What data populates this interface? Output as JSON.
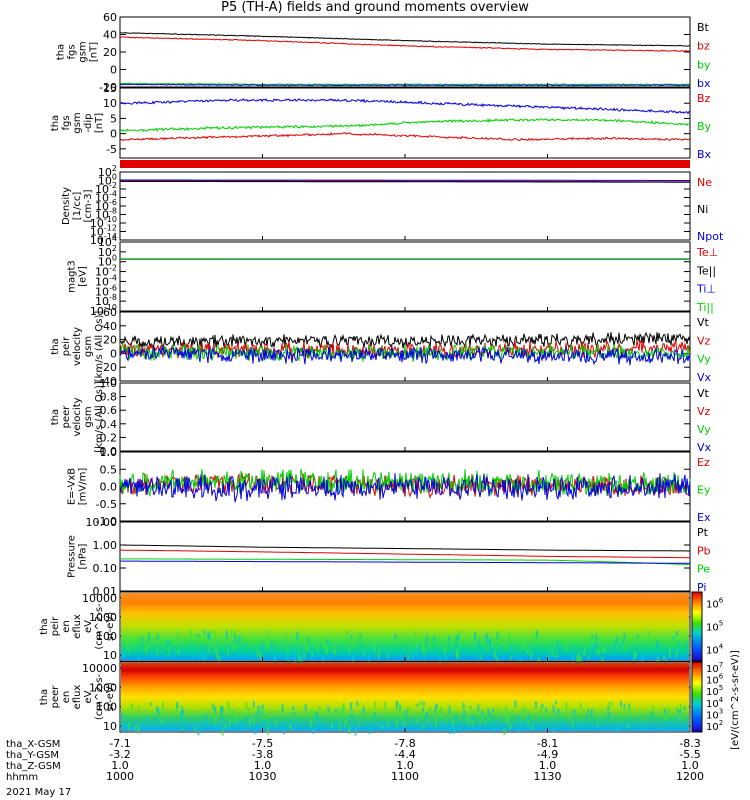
{
  "title": "P5 (TH-A) fields and ground moments overview",
  "colors": {
    "black": "#000000",
    "red": "#e00000",
    "green": "#00d000",
    "blue": "#0000e0"
  },
  "chart_data": [
    {
      "type": "line",
      "ylabel": [
        "tha",
        "fgs",
        "gsm",
        "[nT]"
      ],
      "ylim": [
        -20,
        60
      ],
      "yticks": [
        "-20",
        "0",
        "20",
        "40",
        "60"
      ],
      "yscale": "linear",
      "series": [
        {
          "name": "Bt",
          "color": "#000000",
          "x": [
            0,
            0.25,
            0.5,
            0.75,
            1.0
          ],
          "values": [
            42,
            38,
            33,
            29,
            27
          ]
        },
        {
          "name": "bz",
          "color": "#e00000",
          "x": [
            0,
            0.25,
            0.5,
            0.75,
            1.0
          ],
          "values": [
            37,
            33,
            27,
            23,
            21
          ]
        },
        {
          "name": "by",
          "color": "#00d000",
          "x": [
            0,
            0.25,
            0.5,
            0.75,
            1.0
          ],
          "values": [
            -16,
            -17,
            -17,
            -17,
            -17
          ]
        },
        {
          "name": "bx",
          "color": "#0000e0",
          "x": [
            0,
            0.25,
            0.5,
            0.75,
            1.0
          ],
          "values": [
            -17,
            -18,
            -18,
            -18,
            -18
          ]
        }
      ]
    },
    {
      "type": "line",
      "ylabel": [
        "tha",
        "fgs",
        "gsm",
        "-dip",
        "[nT]"
      ],
      "ylim": [
        -8,
        15
      ],
      "yticks": [
        "-5",
        "0",
        "5",
        "10",
        "15"
      ],
      "yscale": "linear",
      "series": [
        {
          "name": "Bz",
          "color": "#e00000",
          "x": [
            0,
            0.2,
            0.4,
            0.55,
            0.7,
            0.85,
            1.0
          ],
          "values": [
            -2,
            -1,
            0,
            -1,
            -2,
            -1.5,
            -2
          ]
        },
        {
          "name": "By",
          "color": "#00d000",
          "x": [
            0,
            0.2,
            0.4,
            0.55,
            0.7,
            0.85,
            1.0
          ],
          "values": [
            1,
            2,
            2.5,
            4,
            4.5,
            4.5,
            3
          ]
        },
        {
          "name": "Bx",
          "color": "#0000e0",
          "x": [
            0,
            0.2,
            0.4,
            0.55,
            0.7,
            0.85,
            1.0
          ],
          "values": [
            10,
            11,
            11,
            10,
            9,
            8,
            7
          ]
        }
      ]
    },
    {
      "type": "line",
      "ylabel": [
        "Density",
        "[1/cc]",
        "[cm-3]"
      ],
      "ylim": [
        -14,
        2
      ],
      "yticks": [
        "10^2",
        "10^0",
        "10^-2",
        "10^-4",
        "10^-6",
        "10^-8",
        "10^-10",
        "10^-12",
        "10^-14"
      ],
      "yscale": "log",
      "series": [
        {
          "name": "Ne",
          "color": "#e00000",
          "x": [
            0,
            0.5,
            1.0
          ],
          "values": [
            0.8,
            0.7,
            0.5
          ]
        },
        {
          "name": "Ni",
          "color": "#000000",
          "x": [
            0,
            0.5,
            1.0
          ],
          "values": [
            0.6,
            0.5,
            0.4
          ]
        },
        {
          "name": "Npot",
          "color": "#0000e0",
          "x": [
            0,
            0.5,
            1.0
          ],
          "values": [
            1.3,
            1.2,
            1.0
          ]
        }
      ]
    },
    {
      "type": "line",
      "ylabel": [
        "magt3",
        "[eV]"
      ],
      "ylim": [
        -10,
        4
      ],
      "yticks": [
        "10^4",
        "10^2",
        "10^0",
        "10^-2",
        "10^-4",
        "10^-6",
        "10^-8",
        "10^-10"
      ],
      "yscale": "log",
      "series": [
        {
          "name": "Te⊥",
          "color": "#e00000",
          "x": [
            0,
            1.0
          ],
          "values": [
            3.2,
            3.3
          ]
        },
        {
          "name": "Te||",
          "color": "#000000",
          "x": [
            0,
            1.0
          ],
          "values": [
            3.4,
            3.5
          ]
        },
        {
          "name": "Ti⊥",
          "color": "#0000e0",
          "x": [
            0,
            1.0
          ],
          "values": [
            3.0,
            3.1
          ]
        },
        {
          "name": "Ti||",
          "color": "#00d000",
          "x": [
            0,
            1.0
          ],
          "values": [
            2.9,
            3.0
          ]
        }
      ]
    },
    {
      "type": "line",
      "ylabel": [
        "tha",
        "peir",
        "velocity",
        "gsm",
        "[km/s (All Qs)]"
      ],
      "ylim": [
        -40,
        60
      ],
      "yticks": [
        "-40",
        "-20",
        "0",
        "20",
        "40",
        "60"
      ],
      "yscale": "linear",
      "series": [
        {
          "name": "Vt",
          "color": "#000000",
          "x": [
            0,
            0.25,
            0.5,
            0.75,
            1.0
          ],
          "values": [
            15,
            18,
            17,
            19,
            22
          ]
        },
        {
          "name": "Vz",
          "color": "#e00000",
          "x": [
            0,
            0.25,
            0.5,
            0.75,
            1.0
          ],
          "values": [
            5,
            6,
            4,
            6,
            7
          ]
        },
        {
          "name": "Vy",
          "color": "#00d000",
          "x": [
            0,
            0.25,
            0.5,
            0.75,
            1.0
          ],
          "values": [
            2,
            0,
            1,
            2,
            0
          ]
        },
        {
          "name": "Vx",
          "color": "#0000e0",
          "x": [
            0,
            0.25,
            0.5,
            0.75,
            1.0
          ],
          "values": [
            0,
            -3,
            -2,
            -4,
            -5
          ]
        }
      ]
    },
    {
      "type": "line",
      "ylabel": [
        "tha",
        "peer",
        "velocity",
        "gsm",
        "[km/s (All Qs)]"
      ],
      "ylim": [
        0,
        1
      ],
      "yticks": [
        "0.0",
        "0.2",
        "0.4",
        "0.6",
        "0.8",
        "1.0"
      ],
      "yscale": "linear",
      "series": [
        {
          "name": "Vt",
          "color": "#000000",
          "x": [],
          "values": []
        },
        {
          "name": "Vz",
          "color": "#e00000",
          "x": [],
          "values": []
        },
        {
          "name": "Vy",
          "color": "#00d000",
          "x": [],
          "values": []
        },
        {
          "name": "Vx",
          "color": "#0000e0",
          "x": [],
          "values": []
        }
      ]
    },
    {
      "type": "line",
      "ylabel": [
        "E=-VxB",
        "[mV/m]"
      ],
      "ylim": [
        -1,
        1
      ],
      "yticks": [
        "-1.0",
        "-0.5",
        "0.0",
        "0.5",
        "1.0"
      ],
      "yscale": "linear",
      "series": [
        {
          "name": "Ez",
          "color": "#e00000",
          "x": [
            0,
            0.25,
            0.5,
            0.75,
            1.0
          ],
          "values": [
            0.05,
            0.1,
            0.0,
            0.05,
            0.0
          ]
        },
        {
          "name": "Ey",
          "color": "#00d000",
          "x": [
            0,
            0.25,
            0.5,
            0.75,
            1.0
          ],
          "values": [
            0.1,
            0.15,
            0.1,
            0.1,
            0.05
          ]
        },
        {
          "name": "Ex",
          "color": "#0000e0",
          "x": [
            0,
            0.25,
            0.5,
            0.75,
            1.0
          ],
          "values": [
            0.0,
            -0.05,
            0.0,
            -0.05,
            0.0
          ]
        }
      ]
    },
    {
      "type": "line",
      "ylabel": [
        "Pressure",
        "[nPa]"
      ],
      "ylim": [
        -2,
        1
      ],
      "yticks": [
        "0.01",
        "0.10",
        "1.00",
        "10.00"
      ],
      "yscale": "log",
      "series": [
        {
          "name": "Pt",
          "color": "#000000",
          "x": [
            0,
            0.25,
            0.5,
            0.75,
            1.0
          ],
          "values": [
            1.0,
            0.8,
            0.7,
            0.6,
            0.55
          ]
        },
        {
          "name": "Pb",
          "color": "#e00000",
          "x": [
            0,
            0.25,
            0.5,
            0.75,
            1.0
          ],
          "values": [
            0.6,
            0.5,
            0.4,
            0.32,
            0.28
          ]
        },
        {
          "name": "Pe",
          "color": "#00d000",
          "x": [
            0,
            0.25,
            0.5,
            0.75,
            1.0
          ],
          "values": [
            0.25,
            0.24,
            0.23,
            0.22,
            0.14
          ]
        },
        {
          "name": "Pi",
          "color": "#0000e0",
          "x": [
            0,
            0.25,
            0.5,
            0.75,
            1.0
          ],
          "values": [
            0.2,
            0.19,
            0.18,
            0.17,
            0.16
          ]
        }
      ]
    },
    {
      "type": "heatmap",
      "ylabel": [
        "tha",
        "peir",
        "en",
        "eflux",
        "eV",
        "(cm^2-s-",
        "sr-eV)"
      ],
      "ylim": [
        5,
        20000
      ],
      "yticks": [
        "10",
        "100",
        "1000",
        "10000"
      ],
      "yscale": "log",
      "colorbar_label": "eV/(cm^2-s-sr-eV)",
      "colorbar_ticks": [
        "10^4",
        "10^5",
        "10^6"
      ]
    },
    {
      "type": "heatmap",
      "ylabel": [
        "tha",
        "peer",
        "en",
        "eflux",
        "eV",
        "(cm^2-s-",
        "sr-eV)"
      ],
      "ylim": [
        5,
        20000
      ],
      "yticks": [
        "10",
        "100",
        "1000",
        "10000"
      ],
      "yscale": "log",
      "colorbar_label": "eV/(cm^2-s-sr-eV)",
      "colorbar_ticks": [
        "10^2",
        "10^3",
        "10^4",
        "10^5",
        "10^6",
        "10^7"
      ]
    }
  ],
  "x_axis": {
    "rows": [
      {
        "label": "tha_X-GSM",
        "values": [
          "-7.1",
          "-7.5",
          "-7.8",
          "-8.1",
          "-8.3"
        ]
      },
      {
        "label": "tha_Y-GSM",
        "values": [
          "-3.2",
          "-3.8",
          "-4.4",
          "-4.9",
          "-5.5"
        ]
      },
      {
        "label": "tha_Z-GSM",
        "values": [
          "1.0",
          "1.0",
          "1.0",
          "1.0",
          "1.0"
        ]
      },
      {
        "label": "hhmm",
        "values": [
          "1000",
          "1030",
          "1100",
          "1130",
          "1200"
        ]
      }
    ],
    "date": "2021 May 17"
  },
  "units_label": "[eV/(cm^2-s-sr-eV)]"
}
